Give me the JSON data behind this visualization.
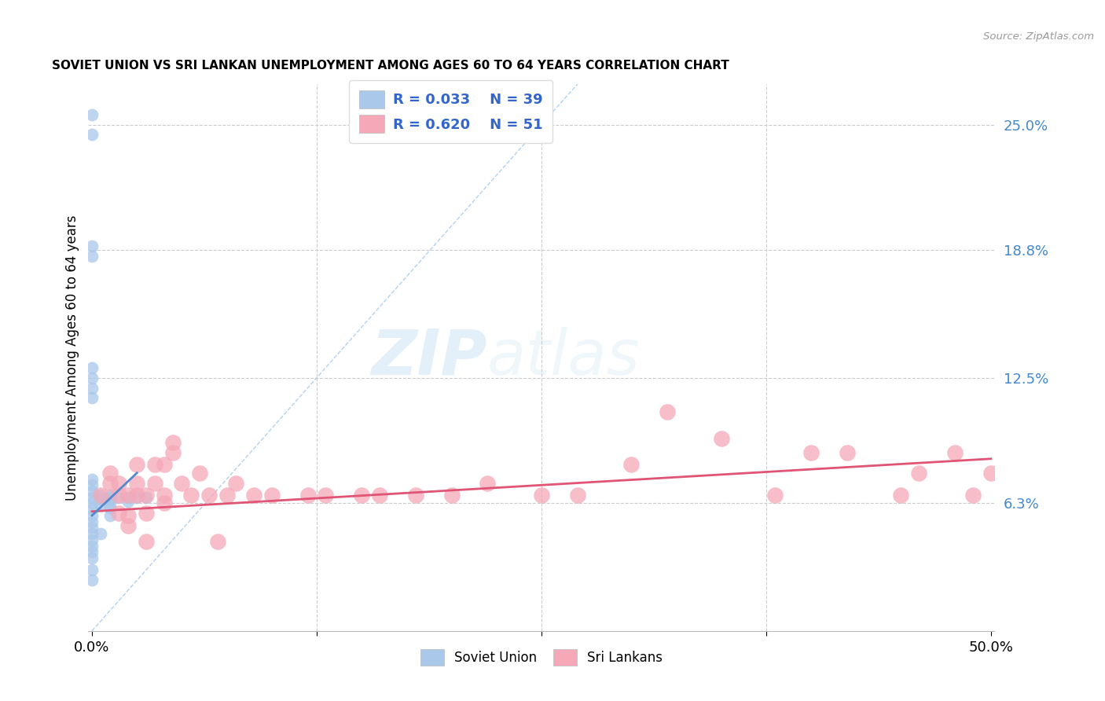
{
  "title": "SOVIET UNION VS SRI LANKAN UNEMPLOYMENT AMONG AGES 60 TO 64 YEARS CORRELATION CHART",
  "source": "Source: ZipAtlas.com",
  "ylabel": "Unemployment Among Ages 60 to 64 years",
  "xlim": [
    0.0,
    0.5
  ],
  "ylim": [
    0.0,
    0.27
  ],
  "ytick_vals": [
    0.063,
    0.125,
    0.188,
    0.25
  ],
  "ytick_labels": [
    "6.3%",
    "12.5%",
    "18.8%",
    "25.0%"
  ],
  "xtick_vals": [
    0.0,
    0.125,
    0.25,
    0.375,
    0.5
  ],
  "xtick_labels": [
    "0.0%",
    "",
    "",
    "",
    "50.0%"
  ],
  "grid_color": "#cccccc",
  "watermark_zip": "ZIP",
  "watermark_atlas": "atlas",
  "soviet_color": "#aac8ea",
  "srilanka_color": "#f5a8b8",
  "soviet_line_color": "#5588cc",
  "srilanka_line_color": "#e05575",
  "dashed_line_color": "#aaccee",
  "legend_text_color": "#3366cc",
  "right_axis_color": "#4488cc",
  "soviet_x": [
    0.0,
    0.0,
    0.0,
    0.0,
    0.0,
    0.0,
    0.0,
    0.0,
    0.0,
    0.0,
    0.0,
    0.0,
    0.0,
    0.0,
    0.0,
    0.0,
    0.0,
    0.0,
    0.0,
    0.0,
    0.0,
    0.0,
    0.0,
    0.0,
    0.005,
    0.005,
    0.005,
    0.005,
    0.01,
    0.01,
    0.01,
    0.01,
    0.01,
    0.01,
    0.015,
    0.02,
    0.02,
    0.025,
    0.03
  ],
  "soviet_y": [
    0.255,
    0.245,
    0.19,
    0.185,
    0.13,
    0.125,
    0.12,
    0.115,
    0.075,
    0.072,
    0.069,
    0.066,
    0.063,
    0.06,
    0.057,
    0.054,
    0.051,
    0.048,
    0.045,
    0.042,
    0.039,
    0.036,
    0.03,
    0.025,
    0.067,
    0.065,
    0.062,
    0.048,
    0.067,
    0.066,
    0.065,
    0.063,
    0.061,
    0.057,
    0.066,
    0.066,
    0.064,
    0.066,
    0.066
  ],
  "srilanka_x": [
    0.005,
    0.01,
    0.01,
    0.015,
    0.015,
    0.015,
    0.02,
    0.02,
    0.02,
    0.025,
    0.025,
    0.025,
    0.03,
    0.03,
    0.03,
    0.035,
    0.035,
    0.04,
    0.04,
    0.04,
    0.045,
    0.045,
    0.05,
    0.055,
    0.06,
    0.065,
    0.07,
    0.075,
    0.08,
    0.09,
    0.1,
    0.12,
    0.13,
    0.15,
    0.16,
    0.18,
    0.2,
    0.22,
    0.25,
    0.27,
    0.3,
    0.32,
    0.35,
    0.38,
    0.4,
    0.42,
    0.45,
    0.46,
    0.48,
    0.49,
    0.5
  ],
  "srilanka_y": [
    0.067,
    0.073,
    0.078,
    0.058,
    0.067,
    0.073,
    0.052,
    0.067,
    0.057,
    0.067,
    0.073,
    0.082,
    0.044,
    0.058,
    0.067,
    0.073,
    0.082,
    0.063,
    0.067,
    0.082,
    0.088,
    0.093,
    0.073,
    0.067,
    0.078,
    0.067,
    0.044,
    0.067,
    0.073,
    0.067,
    0.067,
    0.067,
    0.067,
    0.067,
    0.067,
    0.067,
    0.067,
    0.073,
    0.067,
    0.067,
    0.082,
    0.108,
    0.095,
    0.067,
    0.088,
    0.088,
    0.067,
    0.078,
    0.088,
    0.067,
    0.078
  ],
  "soviet_trend_x": [
    0.0,
    0.025
  ],
  "soviet_trend_y": [
    0.057,
    0.078
  ],
  "srilanka_trend_x": [
    0.0,
    0.5
  ],
  "srilanka_trend_y": [
    0.059,
    0.085
  ],
  "dashed_line_x": [
    0.0,
    0.27
  ],
  "dashed_line_y": [
    0.0,
    0.27
  ]
}
